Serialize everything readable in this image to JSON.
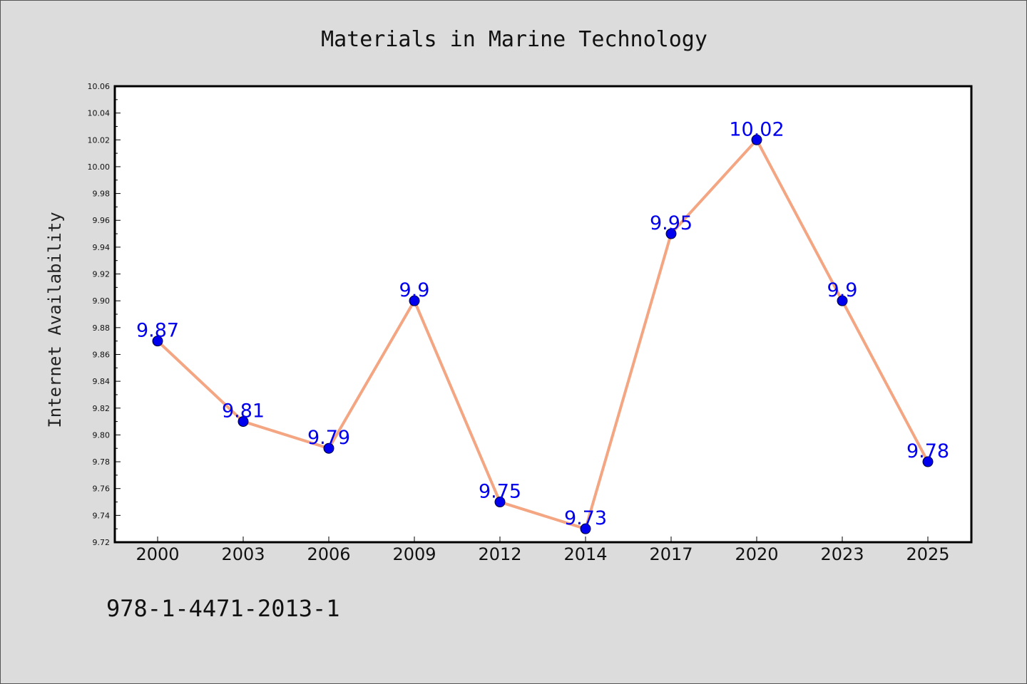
{
  "chart_data": {
    "type": "line",
    "title": "Materials in Marine Technology",
    "xlabel": "",
    "ylabel": "Internet Availability",
    "categories": [
      "2000",
      "2003",
      "2006",
      "2009",
      "2012",
      "2014",
      "2017",
      "2020",
      "2023",
      "2025"
    ],
    "series": [
      {
        "values": [
          9.87,
          9.81,
          9.79,
          9.9,
          9.75,
          9.73,
          9.95,
          10.02,
          9.9,
          9.78
        ],
        "data_labels": [
          "9.87",
          "9.81",
          "9.79",
          "9.9",
          "9.75",
          "9.73",
          "9.95",
          "10.02",
          "9.9",
          "9.78"
        ]
      }
    ],
    "ylim": [
      9.72,
      10.06
    ],
    "y_ticks": [
      "9.72",
      "9.74",
      "9.76",
      "9.78",
      "9.80",
      "9.82",
      "9.84",
      "9.86",
      "9.88",
      "9.90",
      "9.92",
      "9.94",
      "9.96",
      "9.98",
      "10.00",
      "10.02",
      "10.04",
      "10.06"
    ],
    "grid": false,
    "legend": "none",
    "colors": {
      "line": "#f4a582",
      "marker": "#0000ee",
      "data_label": "#0000ee",
      "plot_background": "#ffffff",
      "figure_background": "#dcdcdc"
    }
  },
  "footnote": "978-1-4471-2013-1"
}
